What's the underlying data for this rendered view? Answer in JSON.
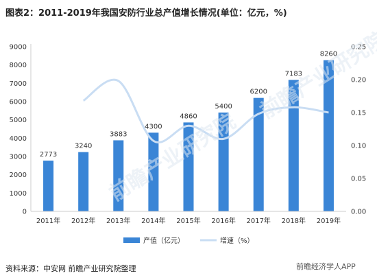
{
  "title": "图表2：2011-2019年我国安防行业总产值增长情况(单位：亿元，%)",
  "source": "资料来源：中安网 前瞻产业研究院整理",
  "watermark": "前瞻产业研究院",
  "corner_logo": "前瞻经济学人APP",
  "colors": {
    "bar": "#3a85d6",
    "line": "#c9ddf3",
    "axis": "#cccccc",
    "text": "#333333"
  },
  "chart_data": {
    "type": "bar",
    "categories": [
      "2011年",
      "2012年",
      "2013年",
      "2014年",
      "2015年",
      "2016年",
      "2017年",
      "2018年",
      "2019年"
    ],
    "series": [
      {
        "name": "产值（亿元）",
        "type": "bar",
        "axis": "left",
        "values": [
          2773,
          3240,
          3883,
          4300,
          4860,
          5400,
          6200,
          7183,
          8260
        ]
      },
      {
        "name": "增速（%）",
        "type": "line",
        "axis": "right",
        "values": [
          null,
          0.168,
          0.198,
          0.107,
          0.13,
          0.11,
          0.148,
          0.158,
          0.15
        ]
      }
    ],
    "ylim_left": [
      0,
      9000
    ],
    "yticks_left": [
      "0",
      "1000",
      "2000",
      "3000",
      "4000",
      "5000",
      "6000",
      "7000",
      "8000",
      "9000"
    ],
    "ylim_right": [
      0,
      0.25
    ],
    "yticks_right": [
      "0.00",
      "0.05",
      "0.10",
      "0.15",
      "0.20",
      "0.25"
    ],
    "legend_position": "bottom",
    "grid": false
  }
}
